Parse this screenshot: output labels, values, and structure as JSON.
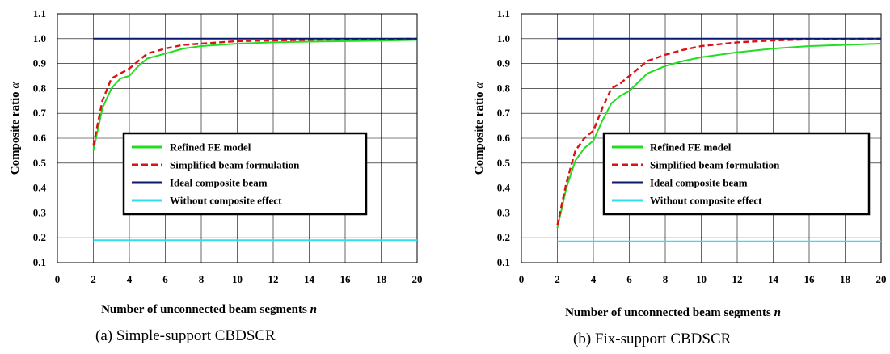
{
  "chart_data": [
    {
      "type": "line",
      "title": "",
      "caption": "(a) Simple-support CBDSCR",
      "xlabel": "Number of unconnected beam segments",
      "xlabel_var": "n",
      "ylabel": "Composite ratio",
      "ylabel_var": "α",
      "xlim": [
        0,
        20
      ],
      "ylim": [
        0.1,
        1.1
      ],
      "xticks": [
        "0",
        "2",
        "4",
        "6",
        "8",
        "10",
        "12",
        "14",
        "16",
        "18",
        "20"
      ],
      "yticks": [
        "0.1",
        "0.2",
        "0.3",
        "0.4",
        "0.5",
        "0.6",
        "0.7",
        "0.8",
        "0.9",
        "1.0",
        "1.1"
      ],
      "grid": true,
      "legend_position": "center-right",
      "series": [
        {
          "name": "Refined FE model",
          "color": "#22dd22",
          "style": "solid",
          "x": [
            2,
            2.5,
            3,
            3.5,
            4,
            4.5,
            5,
            6,
            7,
            8,
            9,
            10,
            12,
            14,
            16,
            18,
            20
          ],
          "y": [
            0.55,
            0.72,
            0.8,
            0.84,
            0.85,
            0.89,
            0.92,
            0.94,
            0.96,
            0.97,
            0.975,
            0.98,
            0.985,
            0.988,
            0.99,
            0.992,
            0.995
          ]
        },
        {
          "name": "Simplified beam formulation",
          "color": "#dd1111",
          "style": "dashed",
          "x": [
            2,
            2.5,
            3,
            3.5,
            4,
            4.5,
            5,
            6,
            7,
            8,
            9,
            10,
            12,
            14,
            16,
            18,
            20
          ],
          "y": [
            0.57,
            0.75,
            0.84,
            0.86,
            0.88,
            0.91,
            0.94,
            0.96,
            0.975,
            0.98,
            0.985,
            0.99,
            0.993,
            0.995,
            0.997,
            0.998,
            1.0
          ]
        },
        {
          "name": "Ideal composite beam",
          "color": "#0a1a6e",
          "style": "solid",
          "x": [
            2,
            20
          ],
          "y": [
            1.0,
            1.0
          ]
        },
        {
          "name": "Without composite effect",
          "color": "#33ddee",
          "style": "solid",
          "x": [
            2,
            20
          ],
          "y": [
            0.19,
            0.19
          ]
        }
      ]
    },
    {
      "type": "line",
      "title": "",
      "caption": "(b) Fix-support CBDSCR",
      "xlabel": "Number of unconnected beam segments",
      "xlabel_var": "n",
      "ylabel": "Composite ratio",
      "ylabel_var": "α",
      "xlim": [
        0,
        20
      ],
      "ylim": [
        0.1,
        1.1
      ],
      "xticks": [
        "0",
        "2",
        "4",
        "6",
        "8",
        "10",
        "12",
        "14",
        "16",
        "18",
        "20"
      ],
      "yticks": [
        "0.1",
        "0.2",
        "0.3",
        "0.4",
        "0.5",
        "0.6",
        "0.7",
        "0.8",
        "0.9",
        "1.0",
        "1.1"
      ],
      "grid": true,
      "legend_position": "center-right",
      "series": [
        {
          "name": "Refined FE model",
          "color": "#22dd22",
          "style": "solid",
          "x": [
            2,
            2.5,
            3,
            3.5,
            4,
            4.5,
            5,
            5.5,
            6,
            7,
            8,
            9,
            10,
            12,
            14,
            16,
            18,
            20
          ],
          "y": [
            0.24,
            0.4,
            0.51,
            0.56,
            0.59,
            0.67,
            0.74,
            0.77,
            0.79,
            0.86,
            0.89,
            0.91,
            0.925,
            0.945,
            0.96,
            0.97,
            0.975,
            0.98
          ]
        },
        {
          "name": "Simplified beam formulation",
          "color": "#dd1111",
          "style": "dashed",
          "x": [
            2,
            2.5,
            3,
            3.5,
            4,
            4.5,
            5,
            5.5,
            6,
            7,
            8,
            9,
            10,
            12,
            14,
            16,
            18,
            20
          ],
          "y": [
            0.25,
            0.42,
            0.55,
            0.6,
            0.63,
            0.72,
            0.8,
            0.82,
            0.85,
            0.91,
            0.935,
            0.955,
            0.97,
            0.985,
            0.993,
            0.997,
            0.999,
            1.0
          ]
        },
        {
          "name": "Ideal composite beam",
          "color": "#0a1a6e",
          "style": "solid",
          "x": [
            2,
            20
          ],
          "y": [
            1.0,
            1.0
          ]
        },
        {
          "name": "Without composite effect",
          "color": "#33ddee",
          "style": "solid",
          "x": [
            2,
            20
          ],
          "y": [
            0.185,
            0.185
          ]
        }
      ]
    }
  ]
}
